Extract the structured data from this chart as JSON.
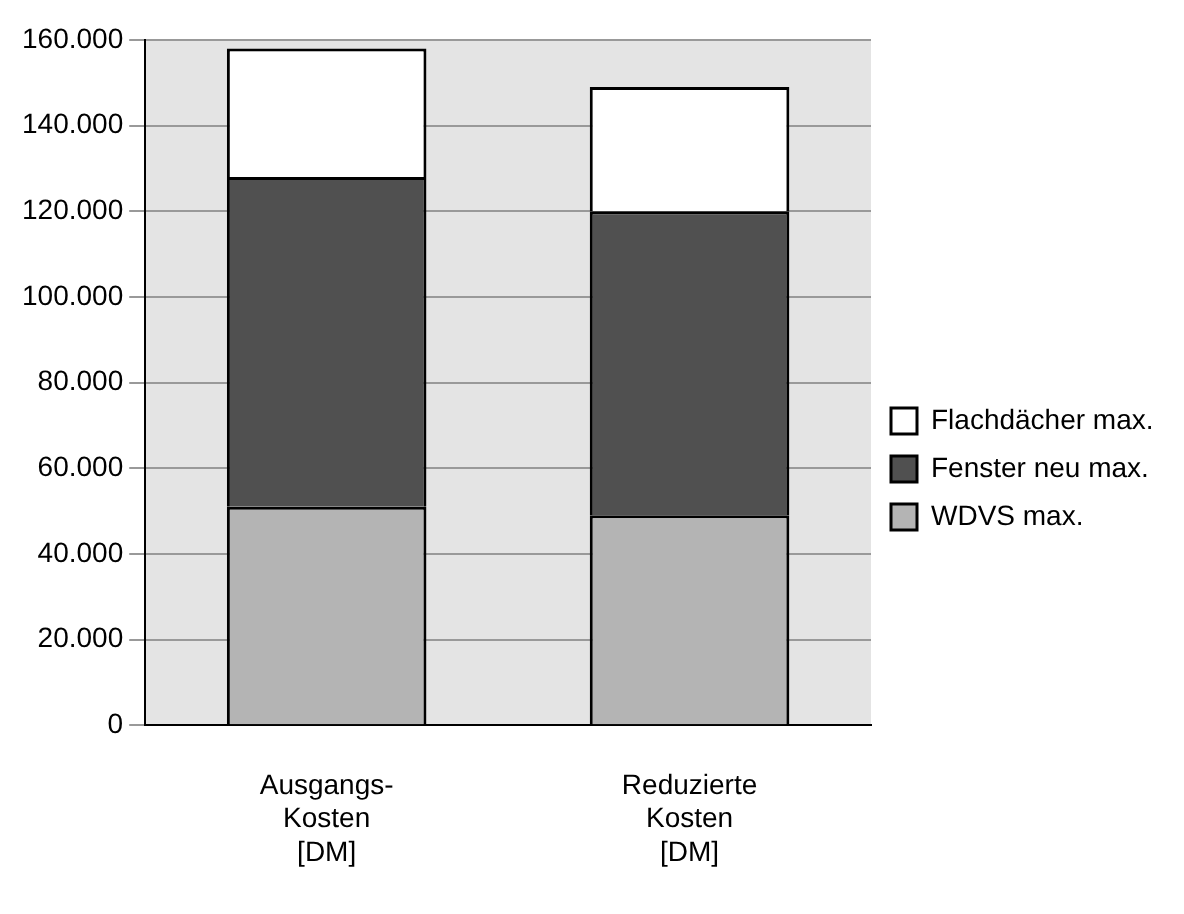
{
  "chart_data": {
    "type": "bar",
    "stacked": true,
    "categories": [
      "Ausgangs-\nKosten\n[DM]",
      "Reduzierte\nKosten\n[DM]"
    ],
    "series": [
      {
        "name": "WDVS max.",
        "color": "#b4b4b4",
        "values": [
          51000,
          49000
        ]
      },
      {
        "name": "Fenster neu max.",
        "color": "#505050",
        "values": [
          77000,
          71000
        ]
      },
      {
        "name": "Flachdächer max.",
        "color": "#ffffff",
        "values": [
          30000,
          29000
        ]
      }
    ],
    "ylim": [
      0,
      160000
    ],
    "yticks": [
      {
        "value": 0,
        "label": "0"
      },
      {
        "value": 20000,
        "label": "20.000"
      },
      {
        "value": 40000,
        "label": "40.000"
      },
      {
        "value": 60000,
        "label": "60.000"
      },
      {
        "value": 80000,
        "label": "80.000"
      },
      {
        "value": 100000,
        "label": "100.000"
      },
      {
        "value": 120000,
        "label": "120.000"
      },
      {
        "value": 140000,
        "label": "140.000"
      },
      {
        "value": 160000,
        "label": "160.000"
      }
    ],
    "grid": "y",
    "legend": "right"
  }
}
